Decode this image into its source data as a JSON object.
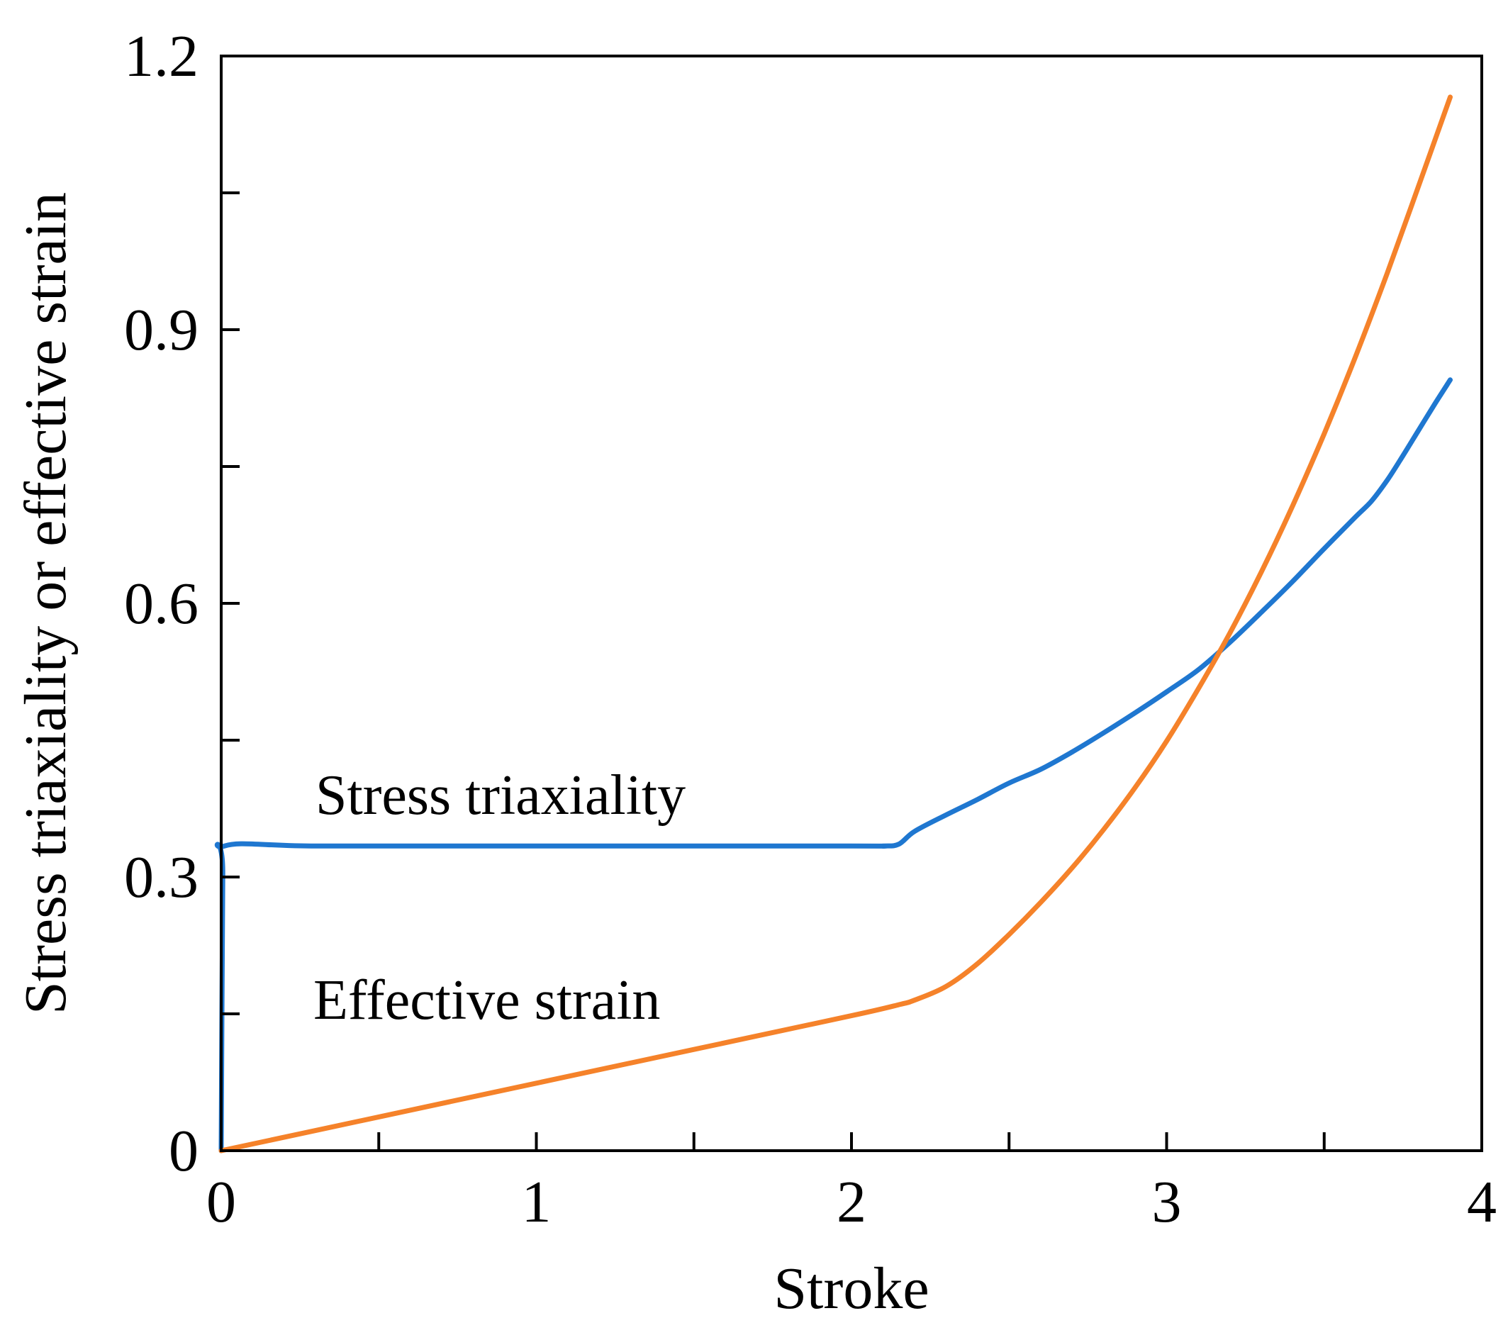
{
  "chart_data": {
    "type": "line",
    "xlabel": "Stroke",
    "ylabel": "Stress triaxiality or effective strain",
    "xlim": [
      0,
      4
    ],
    "ylim": [
      0,
      1.2
    ],
    "x_ticks_major": [
      0,
      1,
      2,
      3,
      4
    ],
    "x_ticks_minor": [
      0.5,
      1.5,
      2.5,
      3.5
    ],
    "y_ticks_major": [
      0,
      0.3,
      0.6,
      0.9,
      1.2
    ],
    "y_ticks_minor": [
      0.15,
      0.45,
      0.75,
      1.05
    ],
    "x_tick_labels": [
      "0",
      "1",
      "2",
      "3",
      "4"
    ],
    "y_tick_labels": [
      "0",
      "0.3",
      "0.6",
      "0.9",
      "1.2"
    ],
    "grid": false,
    "legend": null,
    "annotations": [
      {
        "text": "Stress triaxiality",
        "series": "Stress triaxiality"
      },
      {
        "text": "Effective strain",
        "series": "Effective strain"
      }
    ],
    "series": [
      {
        "name": "Stress triaxiality",
        "color": "#1f77d0",
        "x": [
          0,
          0.005,
          0.01,
          0.3,
          1.0,
          2.0,
          2.1,
          2.15,
          2.2,
          2.3,
          2.4,
          2.5,
          2.6,
          2.7,
          2.8,
          2.9,
          3.0,
          3.1,
          3.2,
          3.3,
          3.4,
          3.5,
          3.6,
          3.65,
          3.7,
          3.75,
          3.8,
          3.85,
          3.9
        ],
        "y": [
          0,
          0.3,
          0.334,
          0.334,
          0.334,
          0.334,
          0.334,
          0.336,
          0.35,
          0.368,
          0.385,
          0.403,
          0.418,
          0.437,
          0.458,
          0.48,
          0.503,
          0.527,
          0.557,
          0.59,
          0.624,
          0.66,
          0.695,
          0.712,
          0.735,
          0.762,
          0.79,
          0.818,
          0.845
        ]
      },
      {
        "name": "Effective strain",
        "color": "#f5822a",
        "x": [
          0,
          0.5,
          1.0,
          1.5,
          2.0,
          2.15,
          2.2,
          2.3,
          2.4,
          2.5,
          2.6,
          2.7,
          2.8,
          2.9,
          3.0,
          3.1,
          3.2,
          3.3,
          3.4,
          3.5,
          3.6,
          3.7,
          3.8,
          3.9
        ],
        "y": [
          0,
          0.037,
          0.074,
          0.111,
          0.148,
          0.16,
          0.165,
          0.18,
          0.205,
          0.237,
          0.272,
          0.31,
          0.352,
          0.398,
          0.449,
          0.506,
          0.567,
          0.634,
          0.707,
          0.786,
          0.871,
          0.962,
          1.058,
          1.155
        ]
      }
    ]
  }
}
